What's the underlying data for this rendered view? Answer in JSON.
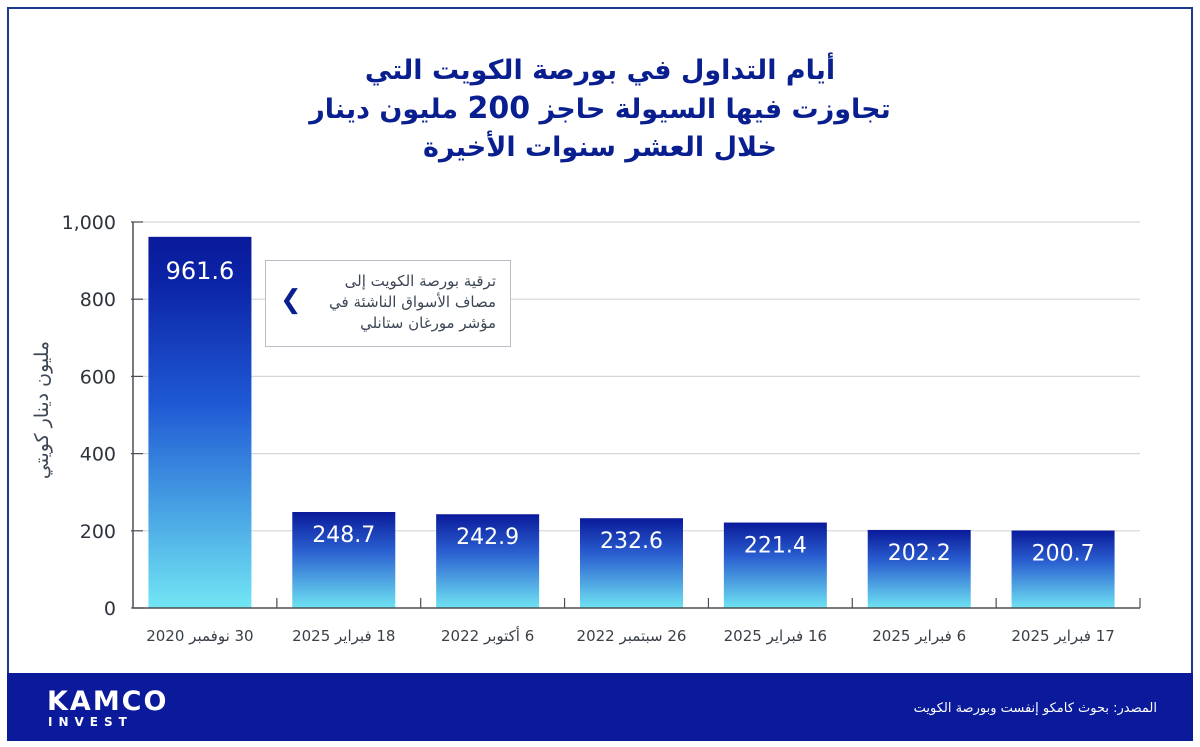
{
  "title": {
    "line1": "أيام التداول في بورصة الكويت التي",
    "line2_before": "تجاوزت فيها السيولة حاجز",
    "line2_num": "200",
    "line2_after": "مليون دينار",
    "line3": "خلال العشر سنوات الأخيرة"
  },
  "callout": {
    "lines": [
      "ترقية بورصة الكويت إلى",
      "مصاف الأسواق الناشئة في",
      "مؤشر مورغان ستانلي"
    ],
    "icon": "chevron-left-icon"
  },
  "footer": {
    "logo_main": "KAMCO",
    "logo_sub": "INVEST",
    "source": "المصدر: بحوث كامكو إنفست وبورصة الكويت"
  },
  "colors": {
    "title": "#0a1f8f",
    "bar_top": "#0a1a9a",
    "bar_bottom": "#6fe3f2",
    "highlight_bar_top": "#0a1a9a",
    "highlight_bar_bottom": "#72e6f4",
    "footer": "#0a1a9a",
    "grid": "#d3d7db",
    "axis": "#4a4f55"
  },
  "chart_data": {
    "type": "bar",
    "title": "أيام التداول في بورصة الكويت التي تجاوزت فيها السيولة حاجز 200 مليون دينار خلال العشر سنوات الأخيرة",
    "xlabel": "",
    "ylabel": "مليون دينار كويتي",
    "ylim": [
      0,
      1000
    ],
    "yticks": [
      0,
      200,
      400,
      600,
      800,
      1000
    ],
    "ytick_labels": [
      "0",
      "200",
      "400",
      "600",
      "800",
      "1,000"
    ],
    "grid": true,
    "categories": [
      "30 نوفمبر 2020",
      "18 فبراير 2025",
      "6 أكتوبر 2022",
      "26 سبتمبر 2022",
      "16 فبراير 2025",
      "6 فبراير 2025",
      "17 فبراير 2025"
    ],
    "values": [
      961.6,
      248.7,
      242.9,
      232.6,
      221.4,
      202.2,
      200.7
    ],
    "data_labels": [
      "961.6",
      "248.7",
      "242.9",
      "232.6",
      "221.4",
      "202.2",
      "200.7"
    ],
    "annotations": [
      "ترقية بورصة الكويت إلى مصاف الأسواق الناشئة في مؤشر مورغان ستانلي"
    ]
  }
}
